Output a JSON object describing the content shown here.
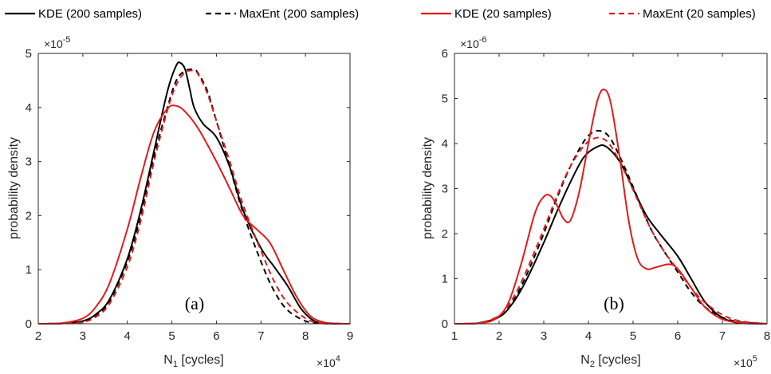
{
  "legend": [
    {
      "label": "KDE (200 samples)",
      "color": "#000000",
      "dash": "solid"
    },
    {
      "label": "MaxEnt (200 samples)",
      "color": "#000000",
      "dash": "dashed"
    },
    {
      "label": "KDE (20 samples)",
      "color": "#e41a1c",
      "dash": "solid"
    },
    {
      "label": "MaxEnt (20 samples)",
      "color": "#e41a1c",
      "dash": "dashed"
    }
  ],
  "chart_data": [
    {
      "type": "line",
      "panel_label": "(a)",
      "xlabel_main": "N",
      "xlabel_sub": "1",
      "xlabel_rest": " [cycles]",
      "ylabel": "probability density",
      "x_multiplier_base": "×10",
      "x_multiplier_exp": "4",
      "y_multiplier_base": "×10",
      "y_multiplier_exp": "-5",
      "xlim": [
        2,
        9
      ],
      "ylim": [
        0,
        5
      ],
      "xticks": [
        "2",
        "3",
        "4",
        "5",
        "6",
        "7",
        "8",
        "9"
      ],
      "yticks": [
        "0",
        "1",
        "2",
        "3",
        "4",
        "5"
      ],
      "series": [
        {
          "legend": 0,
          "x": [
            2,
            2.5,
            3,
            3.3,
            3.6,
            4,
            4.3,
            4.6,
            4.9,
            5.1,
            5.2,
            5.3,
            5.4,
            5.5,
            5.7,
            6,
            6.3,
            6.6,
            7,
            7.3,
            7.6,
            7.9,
            8.2,
            8.5,
            9
          ],
          "y": [
            0,
            0.005,
            0.05,
            0.18,
            0.45,
            1.2,
            2.1,
            3.2,
            4.3,
            4.78,
            4.82,
            4.7,
            4.35,
            4.0,
            3.7,
            3.45,
            2.9,
            2.1,
            1.4,
            1.05,
            0.7,
            0.28,
            0.05,
            0.005,
            0
          ]
        },
        {
          "legend": 1,
          "x": [
            2,
            2.5,
            3,
            3.3,
            3.6,
            4,
            4.3,
            4.6,
            4.9,
            5.1,
            5.3,
            5.5,
            5.6,
            5.8,
            6,
            6.3,
            6.6,
            7,
            7.3,
            7.6,
            8,
            8.3,
            8.6,
            9
          ],
          "y": [
            0,
            0.005,
            0.04,
            0.16,
            0.42,
            1.15,
            2.0,
            3.1,
            4.0,
            4.5,
            4.68,
            4.7,
            4.62,
            4.3,
            3.75,
            2.9,
            2.05,
            1.15,
            0.6,
            0.25,
            0.05,
            0.01,
            0,
            0
          ]
        },
        {
          "legend": 2,
          "x": [
            2,
            2.5,
            3,
            3.3,
            3.6,
            4,
            4.3,
            4.6,
            4.9,
            5.1,
            5.3,
            5.6,
            6,
            6.3,
            6.6,
            6.9,
            7.2,
            7.5,
            7.8,
            8.1,
            8.4,
            8.7,
            9
          ],
          "y": [
            0,
            0.01,
            0.1,
            0.32,
            0.75,
            1.75,
            2.7,
            3.55,
            3.98,
            4.03,
            3.92,
            3.6,
            3.0,
            2.5,
            2.0,
            1.75,
            1.5,
            1.0,
            0.5,
            0.15,
            0.03,
            0.005,
            0
          ]
        },
        {
          "legend": 3,
          "x": [
            2,
            2.5,
            3,
            3.3,
            3.6,
            4,
            4.3,
            4.6,
            4.9,
            5.1,
            5.3,
            5.5,
            5.6,
            5.8,
            6,
            6.3,
            6.6,
            7,
            7.3,
            7.6,
            8,
            8.3,
            8.6,
            9
          ],
          "y": [
            0,
            0.004,
            0.03,
            0.13,
            0.37,
            1.05,
            1.9,
            3.0,
            3.95,
            4.42,
            4.65,
            4.68,
            4.6,
            4.25,
            3.75,
            3.0,
            2.2,
            1.35,
            0.78,
            0.38,
            0.1,
            0.02,
            0.004,
            0
          ]
        }
      ]
    },
    {
      "type": "line",
      "panel_label": "(b)",
      "xlabel_main": "N",
      "xlabel_sub": "2",
      "xlabel_rest": " [cycles]",
      "ylabel": "probability density",
      "x_multiplier_base": "×10",
      "x_multiplier_exp": "5",
      "y_multiplier_base": "×10",
      "y_multiplier_exp": "-6",
      "xlim": [
        1,
        8
      ],
      "ylim": [
        0,
        6
      ],
      "xticks": [
        "1",
        "2",
        "3",
        "4",
        "5",
        "6",
        "7",
        "8"
      ],
      "yticks": [
        "0",
        "1",
        "2",
        "3",
        "4",
        "5",
        "6"
      ],
      "series": [
        {
          "legend": 0,
          "x": [
            1,
            1.5,
            2,
            2.3,
            2.6,
            3,
            3.3,
            3.6,
            3.9,
            4.2,
            4.4,
            4.7,
            5,
            5.3,
            5.6,
            6,
            6.3,
            6.6,
            6.9,
            7.2,
            7.5,
            8
          ],
          "y": [
            0,
            0.01,
            0.15,
            0.45,
            0.95,
            1.8,
            2.5,
            3.15,
            3.7,
            3.93,
            3.93,
            3.6,
            3.0,
            2.4,
            2.0,
            1.5,
            1.0,
            0.5,
            0.2,
            0.05,
            0.01,
            0
          ]
        },
        {
          "legend": 1,
          "x": [
            1,
            1.5,
            2,
            2.3,
            2.6,
            3,
            3.3,
            3.6,
            3.9,
            4.1,
            4.3,
            4.5,
            4.8,
            5.1,
            5.4,
            5.7,
            6,
            6.3,
            6.6,
            7,
            7.4,
            8
          ],
          "y": [
            0,
            0.01,
            0.15,
            0.48,
            1.05,
            2.0,
            2.8,
            3.5,
            4.05,
            4.25,
            4.27,
            4.1,
            3.5,
            2.8,
            2.1,
            1.6,
            1.15,
            0.7,
            0.38,
            0.14,
            0.04,
            0
          ]
        },
        {
          "legend": 2,
          "x": [
            1,
            1.5,
            1.9,
            2.2,
            2.5,
            2.8,
            3.0,
            3.15,
            3.3,
            3.45,
            3.6,
            3.8,
            4.0,
            4.2,
            4.35,
            4.5,
            4.7,
            4.9,
            5.1,
            5.3,
            5.5,
            5.8,
            6.0,
            6.3,
            6.6,
            7,
            7.5,
            8
          ],
          "y": [
            0,
            0.01,
            0.1,
            0.45,
            1.35,
            2.45,
            2.82,
            2.84,
            2.62,
            2.32,
            2.3,
            2.95,
            4.0,
            4.95,
            5.2,
            4.9,
            3.7,
            2.3,
            1.45,
            1.22,
            1.25,
            1.32,
            1.22,
            0.8,
            0.38,
            0.1,
            0.02,
            0
          ]
        },
        {
          "legend": 3,
          "x": [
            1,
            1.5,
            2,
            2.3,
            2.6,
            3,
            3.3,
            3.6,
            3.9,
            4.1,
            4.3,
            4.5,
            4.8,
            5.1,
            5.4,
            5.7,
            6,
            6.3,
            6.6,
            7,
            7.4,
            8
          ],
          "y": [
            0,
            0.01,
            0.18,
            0.55,
            1.15,
            2.1,
            2.85,
            3.5,
            3.95,
            4.1,
            4.12,
            3.95,
            3.4,
            2.75,
            2.1,
            1.6,
            1.2,
            0.8,
            0.48,
            0.2,
            0.06,
            0
          ]
        }
      ]
    }
  ]
}
